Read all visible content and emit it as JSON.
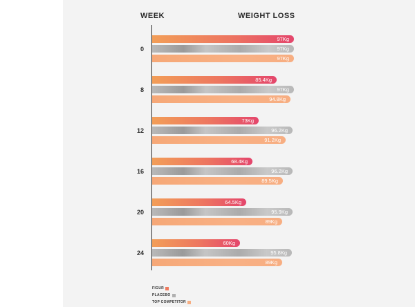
{
  "chart_data": {
    "type": "bar",
    "orientation": "horizontal",
    "header_left": "WEEK",
    "header_right": "WEIGHT LOSS",
    "categories": [
      "0",
      "8",
      "12",
      "16",
      "20",
      "24"
    ],
    "unit": "Kg",
    "series": [
      {
        "name": "FIGUR",
        "color": "#ef7a5e",
        "values": [
          97,
          85.4,
          73,
          68.4,
          64.5,
          60
        ],
        "labels": [
          "97Kg",
          "85.4Kg",
          "73Kg",
          "68.4Kg",
          "64.5Kg",
          "60Kg"
        ]
      },
      {
        "name": "PLACEBO",
        "color": "#b0b0b0",
        "values": [
          97,
          97,
          96.2,
          96.2,
          95.9,
          95.8
        ],
        "labels": [
          "97Kg",
          "97Kg",
          "96.2Kg",
          "96.2Kg",
          "95.9Kg",
          "95.8Kg"
        ]
      },
      {
        "name": "TOP COMPETITOR",
        "color": "#f7ae82",
        "values": [
          97,
          94.8,
          91.2,
          89.5,
          89,
          89
        ],
        "labels": [
          "97Kg",
          "94.8Kg",
          "91.2Kg",
          "89.5Kg",
          "89Kg",
          "89Kg"
        ]
      }
    ],
    "legend_position": "bottom-left"
  }
}
